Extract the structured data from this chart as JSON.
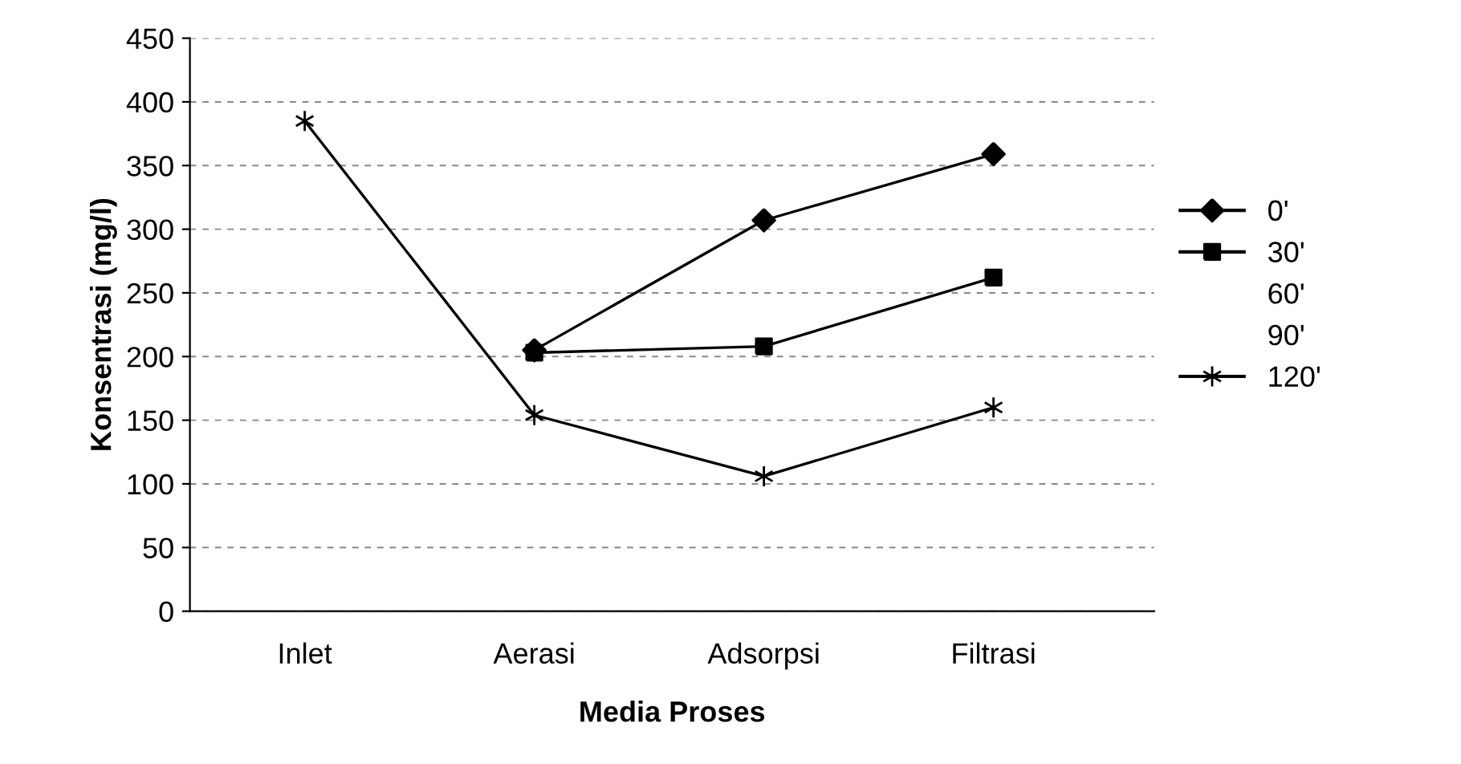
{
  "chart_data": {
    "type": "line",
    "xlabel": "Media Proses",
    "ylabel": "Konsentrasi (mg/l)",
    "categories": [
      "Inlet",
      "Aerasi",
      "Adsorpsi",
      "Filtrasi"
    ],
    "series": [
      {
        "name": "0'",
        "color": "#000000",
        "marker": "diamond",
        "values": [
          null,
          205,
          307,
          359
        ]
      },
      {
        "name": "30'",
        "color": "#000000",
        "marker": "square",
        "values": [
          null,
          203,
          208,
          262
        ]
      },
      {
        "name": "60'",
        "values": [
          null,
          null,
          null,
          null
        ]
      },
      {
        "name": "90'",
        "values": [
          null,
          null,
          null,
          null
        ]
      },
      {
        "name": "120'",
        "color": "#000000",
        "marker": "cross",
        "values": [
          385,
          154,
          106,
          160
        ]
      }
    ],
    "ylim": [
      0,
      450
    ],
    "yticks": [
      0,
      50,
      100,
      150,
      200,
      250,
      300,
      350,
      400,
      450
    ],
    "grid": "y",
    "legend": "right"
  }
}
